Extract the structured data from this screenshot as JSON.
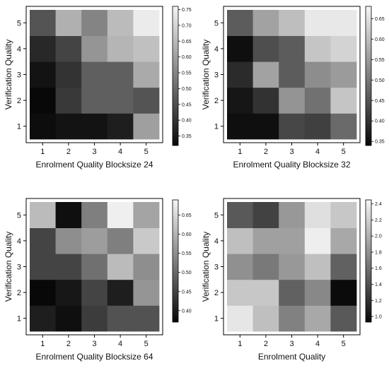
{
  "chart_data": [
    {
      "type": "heatmap",
      "xlabel": "Enrolment Quality Blocksize 24",
      "ylabel": "Verification Quality",
      "x_categories": [
        "1",
        "2",
        "3",
        "4",
        "5"
      ],
      "y_categories": [
        "1",
        "2",
        "3",
        "4",
        "5"
      ],
      "colorscale": "grayscale",
      "colorbar_range": [
        0.32,
        0.76
      ],
      "colorbar_ticks": [
        "0.35",
        "0.40",
        "0.45",
        "0.50",
        "0.55",
        "0.60",
        "0.65",
        "0.70",
        "0.75"
      ],
      "values": [
        [
          0.33,
          0.34,
          0.34,
          0.36,
          0.6
        ],
        [
          0.32,
          0.41,
          0.48,
          0.48,
          0.46
        ],
        [
          0.34,
          0.4,
          0.48,
          0.48,
          0.62
        ],
        [
          0.38,
          0.43,
          0.58,
          0.64,
          0.66
        ],
        [
          0.46,
          0.63,
          0.55,
          0.65,
          0.74
        ]
      ]
    },
    {
      "type": "heatmap",
      "xlabel": "Enrolment Quality  Blocksize 32",
      "ylabel": "Verification Quality",
      "x_categories": [
        "1",
        "2",
        "3",
        "4",
        "5"
      ],
      "y_categories": [
        "1",
        "2",
        "3",
        "4",
        "5"
      ],
      "colorscale": "grayscale",
      "colorbar_range": [
        0.34,
        0.68
      ],
      "colorbar_ticks": [
        "0.35",
        "0.40",
        "0.45",
        "0.50",
        "0.55",
        "0.60",
        "0.65"
      ],
      "values": [
        [
          0.35,
          0.35,
          0.43,
          0.42,
          0.48
        ],
        [
          0.36,
          0.4,
          0.54,
          0.49,
          0.61
        ],
        [
          0.39,
          0.56,
          0.46,
          0.53,
          0.55
        ],
        [
          0.35,
          0.44,
          0.46,
          0.61,
          0.63
        ],
        [
          0.46,
          0.56,
          0.6,
          0.66,
          0.66
        ]
      ]
    },
    {
      "type": "heatmap",
      "xlabel": "Enrolment Quality  Blocksize 64",
      "ylabel": "Verification Quality",
      "x_categories": [
        "1",
        "2",
        "3",
        "4",
        "5"
      ],
      "y_categories": [
        "1",
        "2",
        "3",
        "4",
        "5"
      ],
      "colorscale": "grayscale",
      "colorbar_range": [
        0.37,
        0.69
      ],
      "colorbar_ticks": [
        "0.40",
        "0.45",
        "0.50",
        "0.55",
        "0.60",
        "0.65"
      ],
      "values": [
        [
          0.4,
          0.38,
          0.44,
          0.47,
          0.47
        ],
        [
          0.37,
          0.39,
          0.45,
          0.4,
          0.56
        ],
        [
          0.45,
          0.45,
          0.51,
          0.61,
          0.55
        ],
        [
          0.45,
          0.55,
          0.57,
          0.53,
          0.63
        ],
        [
          0.61,
          0.38,
          0.53,
          0.68,
          0.58
        ]
      ]
    },
    {
      "type": "heatmap",
      "xlabel": "Enrolment Quality",
      "ylabel": "Verification Quality",
      "x_categories": [
        "1",
        "2",
        "3",
        "4",
        "5"
      ],
      "y_categories": [
        "1",
        "2",
        "3",
        "4",
        "5"
      ],
      "colorscale": "grayscale",
      "colorbar_range": [
        0.93,
        2.45
      ],
      "colorbar_ticks": [
        "1.0",
        "1.2",
        "1.4",
        "1.6",
        "1.8",
        "2.0",
        "2.2",
        "2.4"
      ],
      "values": [
        [
          2.35,
          2.1,
          1.7,
          1.95,
          1.45
        ],
        [
          2.15,
          2.15,
          1.5,
          1.75,
          0.95
        ],
        [
          1.8,
          1.65,
          1.85,
          2.1,
          1.5
        ],
        [
          2.1,
          1.9,
          1.9,
          2.4,
          1.95
        ],
        [
          1.45,
          1.3,
          1.85,
          2.3,
          2.15
        ]
      ]
    }
  ]
}
